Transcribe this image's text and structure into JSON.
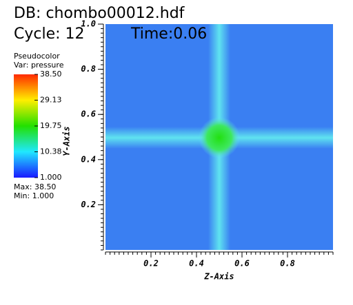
{
  "chart_data": {
    "type": "heatmap",
    "db": "DB: chombo00012.hdf",
    "cycle": "Cycle: 12",
    "time": "Time:0.06",
    "xlabel": "Z-Axis",
    "ylabel": "Y-Axis",
    "xlim": [
      0,
      1
    ],
    "ylim": [
      0,
      1
    ],
    "xticks": [
      0.2,
      0.4,
      0.6,
      0.8
    ],
    "yticks": [
      0.2,
      0.4,
      0.6,
      0.8,
      {
        "value": 1,
        "label": "1.0"
      }
    ],
    "legend": {
      "title": "Pseudocolor",
      "var": "Var: pressure",
      "clim": [
        1,
        38.5
      ],
      "ticks": [
        {
          "value": 38.5,
          "label": "38.50"
        },
        {
          "value": 29.13,
          "label": "29.13"
        },
        {
          "value": 19.75,
          "label": "19.75"
        },
        {
          "value": 10.38,
          "label": "10.38"
        },
        {
          "value": 1,
          "label": "1.000"
        }
      ],
      "max": "Max: 38.50",
      "min": "Min: 1.000"
    }
  }
}
